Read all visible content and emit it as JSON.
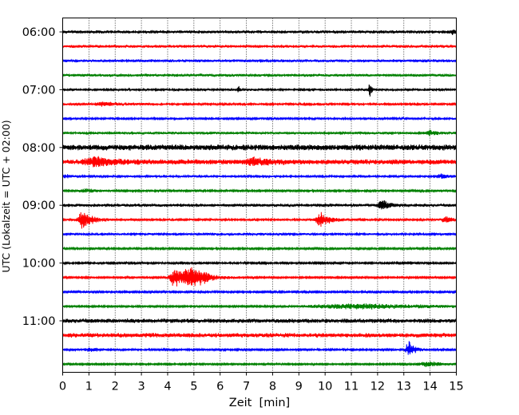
{
  "chart_data": {
    "type": "line",
    "title": "",
    "xlabel": "Zeit  [min]",
    "ylabel": "UTC (Lokalzeit = UTC + 02:00)",
    "xlim": [
      0,
      15
    ],
    "x_ticks": [
      "0",
      "1",
      "2",
      "3",
      "4",
      "5",
      "6",
      "7",
      "8",
      "9",
      "10",
      "11",
      "12",
      "13",
      "14",
      "15"
    ],
    "y_tick_labels": [
      "06:00",
      "07:00",
      "08:00",
      "09:00",
      "10:00",
      "11:00"
    ],
    "grid": "vertical-dotted",
    "colors": [
      "#000000",
      "#ff0000",
      "#0000ff",
      "#008000"
    ],
    "traces": [
      {
        "start": "06:00",
        "color": "#000000",
        "base": 2.2,
        "events": [
          {
            "t": 14.85,
            "amp": 3,
            "dur": 0.2
          }
        ]
      },
      {
        "start": "06:15",
        "color": "#ff0000",
        "base": 2.0,
        "events": []
      },
      {
        "start": "06:30",
        "color": "#0000ff",
        "base": 2.0,
        "events": []
      },
      {
        "start": "06:45",
        "color": "#008000",
        "base": 2.0,
        "events": []
      },
      {
        "start": "07:00",
        "color": "#000000",
        "base": 1.6,
        "events": [
          {
            "t": 6.7,
            "amp": 5,
            "dur": 0.15
          },
          {
            "t": 11.7,
            "amp": 12,
            "dur": 0.12
          }
        ]
      },
      {
        "start": "07:15",
        "color": "#ff0000",
        "base": 1.4,
        "events": [
          {
            "t": 1.6,
            "amp": 3,
            "dur": 1.2
          }
        ]
      },
      {
        "start": "07:30",
        "color": "#0000ff",
        "base": 1.5,
        "events": []
      },
      {
        "start": "07:45",
        "color": "#008000",
        "base": 1.8,
        "events": [
          {
            "t": 14.0,
            "amp": 3,
            "dur": 0.6
          }
        ]
      },
      {
        "start": "08:00",
        "color": "#000000",
        "base": 4.0,
        "events": []
      },
      {
        "start": "08:15",
        "color": "#ff0000",
        "base": 3.5,
        "events": [
          {
            "t": 1.3,
            "amp": 5,
            "dur": 1.5
          },
          {
            "t": 7.3,
            "amp": 4,
            "dur": 1.2
          }
        ]
      },
      {
        "start": "08:30",
        "color": "#0000ff",
        "base": 1.5,
        "events": [
          {
            "t": 0.1,
            "amp": 3,
            "dur": 0.3
          },
          {
            "t": 14.4,
            "amp": 3,
            "dur": 0.6
          }
        ]
      },
      {
        "start": "08:45",
        "color": "#008000",
        "base": 1.2,
        "events": [
          {
            "t": 0.9,
            "amp": 3,
            "dur": 0.9
          }
        ]
      },
      {
        "start": "09:00",
        "color": "#000000",
        "base": 2.2,
        "events": [
          {
            "t": 12.2,
            "amp": 7,
            "dur": 0.5
          }
        ]
      },
      {
        "start": "09:15",
        "color": "#ff0000",
        "base": 1.5,
        "events": [
          {
            "t": 0.8,
            "amp": 12,
            "dur": 0.7
          },
          {
            "t": 9.85,
            "amp": 12,
            "dur": 0.6
          },
          {
            "t": 14.6,
            "amp": 4,
            "dur": 0.5
          }
        ]
      },
      {
        "start": "09:30",
        "color": "#0000ff",
        "base": 1.6,
        "events": []
      },
      {
        "start": "09:45",
        "color": "#008000",
        "base": 1.2,
        "events": []
      },
      {
        "start": "10:00",
        "color": "#000000",
        "base": 1.3,
        "events": []
      },
      {
        "start": "10:15",
        "color": "#ff0000",
        "base": 1.0,
        "events": [
          {
            "t": 4.3,
            "amp": 14,
            "dur": 0.7
          },
          {
            "t": 5.0,
            "amp": 14,
            "dur": 1.2
          }
        ]
      },
      {
        "start": "10:30",
        "color": "#0000ff",
        "base": 1.2,
        "events": []
      },
      {
        "start": "10:45",
        "color": "#008000",
        "base": 1.0,
        "events": [
          {
            "t": 11.4,
            "amp": 3.5,
            "dur": 7.2
          }
        ]
      },
      {
        "start": "11:00",
        "color": "#000000",
        "base": 3.0,
        "events": []
      },
      {
        "start": "11:15",
        "color": "#ff0000",
        "base": 3.0,
        "events": []
      },
      {
        "start": "11:30",
        "color": "#0000ff",
        "base": 1.3,
        "events": [
          {
            "t": 1.1,
            "amp": 2.5,
            "dur": 1.0
          },
          {
            "t": 13.2,
            "amp": 12,
            "dur": 0.4
          }
        ]
      },
      {
        "start": "11:45",
        "color": "#008000",
        "base": 1.0,
        "events": [
          {
            "t": 13.9,
            "amp": 3.5,
            "dur": 1.6
          }
        ]
      }
    ]
  }
}
